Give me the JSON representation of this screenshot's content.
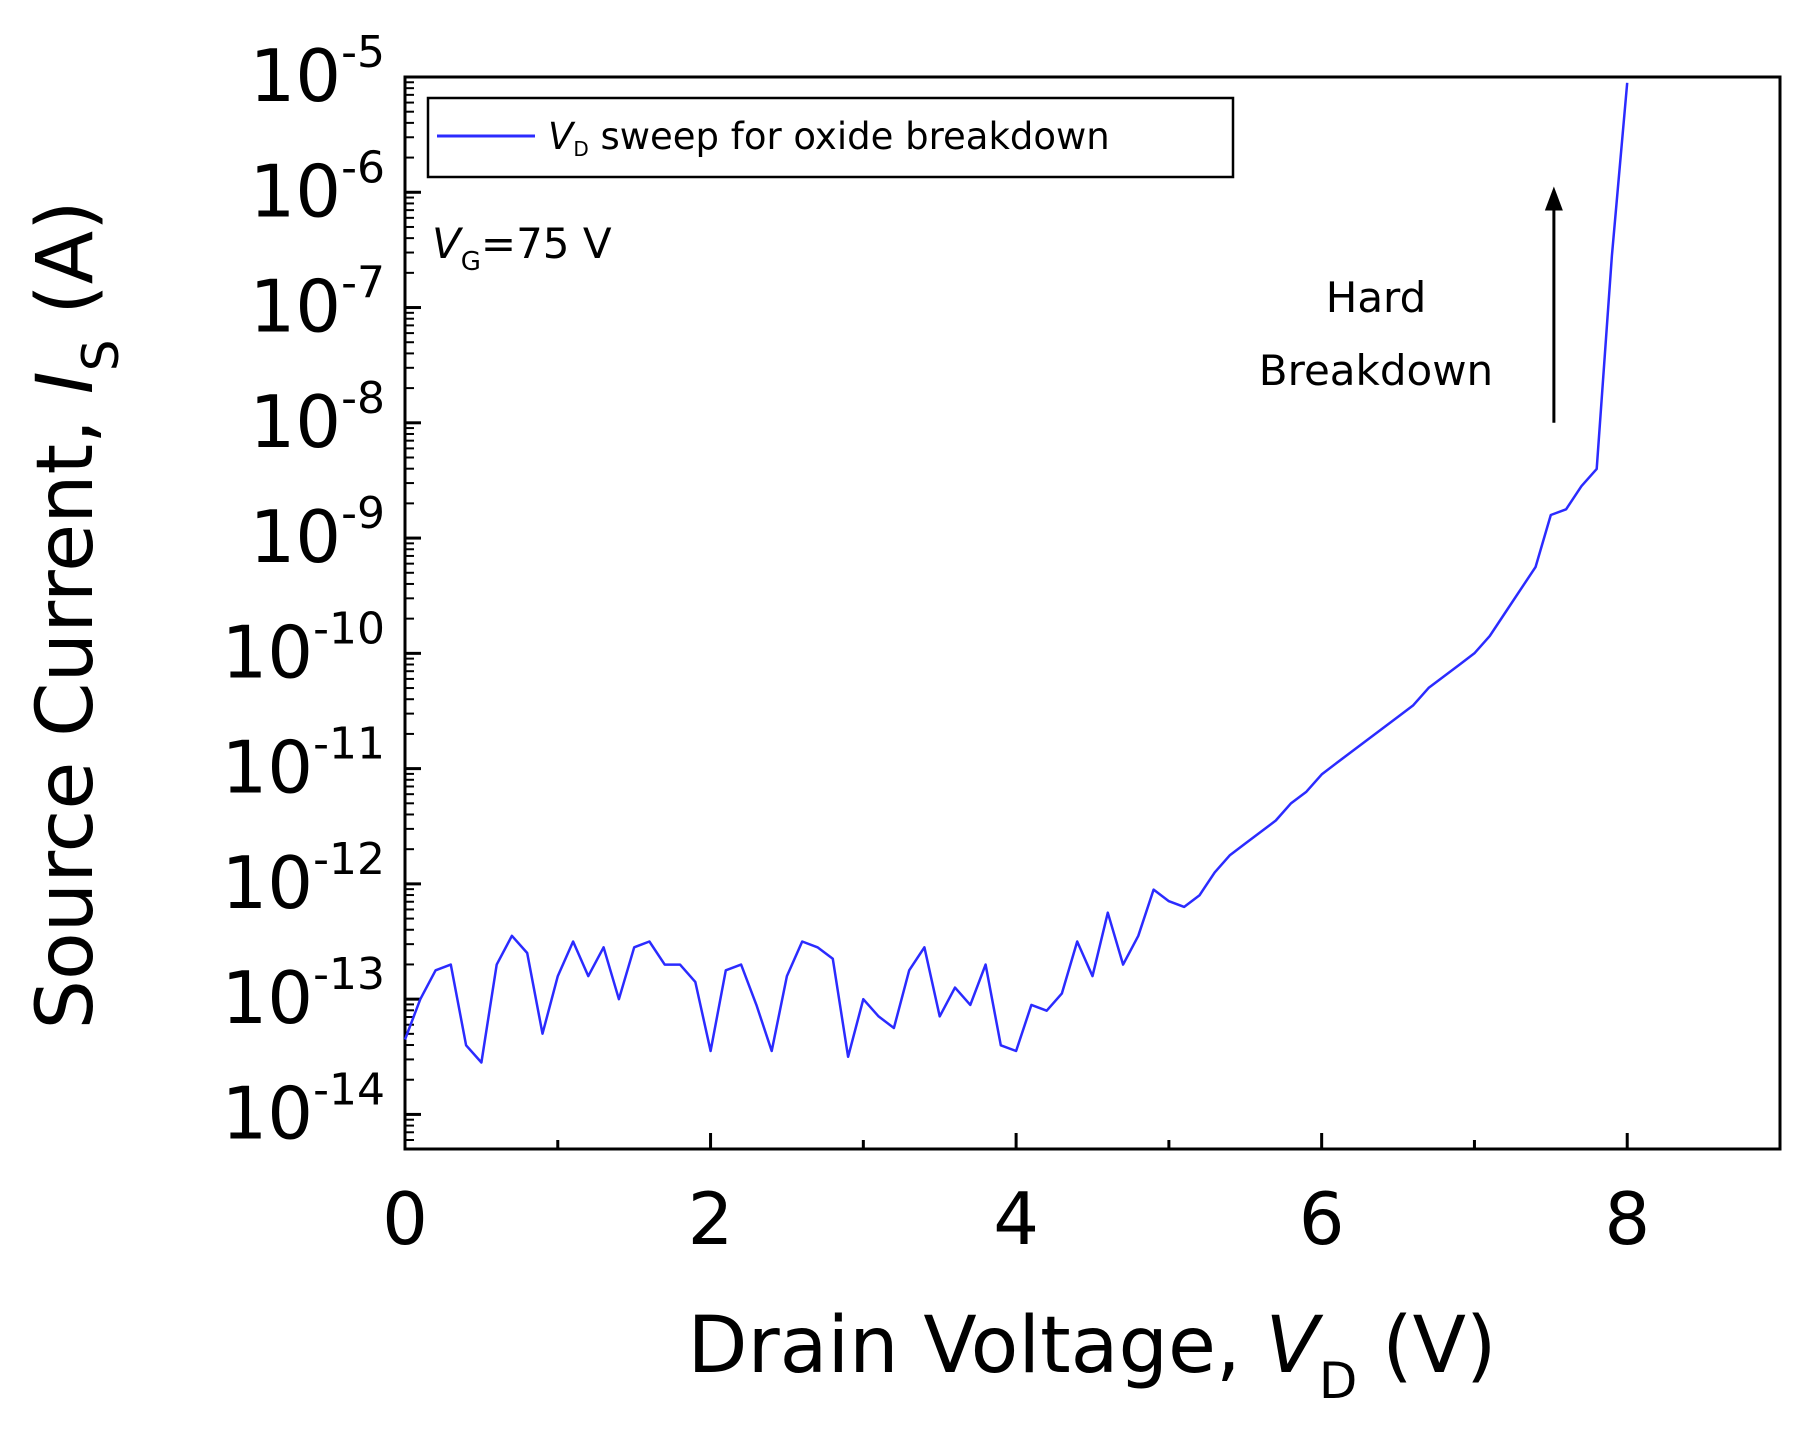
{
  "chart_data": {
    "type": "line",
    "xlabel": {
      "prefix": "Drain Voltage, ",
      "var": "V",
      "sub": "D",
      "suffix": " (V)"
    },
    "ylabel": {
      "prefix": "Source Current, ",
      "var": "I",
      "sub": "S",
      "suffix": " (A)"
    },
    "xlim": [
      0,
      9
    ],
    "ylim_exp": [
      -14.3,
      -5
    ],
    "x_ticks": [
      0,
      2,
      4,
      6,
      8
    ],
    "y_ticks": [
      {
        "base": "10",
        "exp": "-5",
        "value": -5
      },
      {
        "base": "10",
        "exp": "-6",
        "value": -6
      },
      {
        "base": "10",
        "exp": "-7",
        "value": -7
      },
      {
        "base": "10",
        "exp": "-8",
        "value": -8
      },
      {
        "base": "10",
        "exp": "-9",
        "value": -9
      },
      {
        "base": "10",
        "exp": "-10",
        "value": -10
      },
      {
        "base": "10",
        "exp": "-11",
        "value": -11
      },
      {
        "base": "10",
        "exp": "-12",
        "value": -12
      },
      {
        "base": "10",
        "exp": "-13",
        "value": -13
      },
      {
        "base": "10",
        "exp": "-14",
        "value": -14
      }
    ],
    "legend": {
      "var": "V",
      "sub": "D",
      "text": " sweep for oxide breakdown",
      "location": "top-left"
    },
    "condition": {
      "var": "V",
      "sub": "G",
      "text": "=75 V"
    },
    "annotation": {
      "lines": [
        "Hard",
        "Breakdown"
      ],
      "arrow_x": 7.52,
      "arrow_from": -8.0,
      "arrow_to": -5.95
    },
    "series": [
      {
        "name": "V_D sweep for oxide breakdown",
        "color": "#2b2bff",
        "x": [
          0,
          0.1,
          0.2,
          0.3,
          0.4,
          0.5,
          0.6,
          0.7,
          0.8,
          0.9,
          1.0,
          1.1,
          1.2,
          1.3,
          1.4,
          1.5,
          1.6,
          1.7,
          1.8,
          1.9,
          2.0,
          2.1,
          2.2,
          2.3,
          2.4,
          2.5,
          2.6,
          2.7,
          2.8,
          2.9,
          3.0,
          3.1,
          3.2,
          3.3,
          3.4,
          3.5,
          3.6,
          3.7,
          3.8,
          3.9,
          4.0,
          4.1,
          4.2,
          4.3,
          4.4,
          4.5,
          4.6,
          4.7,
          4.8,
          4.9,
          5.0,
          5.1,
          5.2,
          5.3,
          5.4,
          5.5,
          5.6,
          5.7,
          5.8,
          5.9,
          6.0,
          6.1,
          6.2,
          6.3,
          6.4,
          6.5,
          6.6,
          6.7,
          6.8,
          6.9,
          7.0,
          7.1,
          7.2,
          7.3,
          7.4,
          7.5,
          7.6,
          7.7,
          7.8,
          7.9,
          8.0
        ],
        "log10_y": [
          -13.35,
          -13.0,
          -12.75,
          -12.7,
          -13.4,
          -13.55,
          -12.7,
          -12.45,
          -12.6,
          -13.3,
          -12.8,
          -12.5,
          -12.8,
          -12.55,
          -13.0,
          -12.55,
          -12.5,
          -12.7,
          -12.7,
          -12.85,
          -13.45,
          -12.75,
          -12.7,
          -13.05,
          -13.45,
          -12.8,
          -12.5,
          -12.55,
          -12.65,
          -13.5,
          -13.0,
          -13.15,
          -13.25,
          -12.75,
          -12.55,
          -13.15,
          -12.9,
          -13.05,
          -12.7,
          -13.4,
          -13.45,
          -13.05,
          -13.1,
          -12.95,
          -12.5,
          -12.8,
          -12.25,
          -12.7,
          -12.45,
          -12.05,
          -12.15,
          -12.2,
          -12.1,
          -11.9,
          -11.75,
          -11.65,
          -11.55,
          -11.45,
          -11.3,
          -11.2,
          -11.05,
          -10.95,
          -10.85,
          -10.75,
          -10.65,
          -10.55,
          -10.45,
          -10.3,
          -10.2,
          -10.1,
          -10.0,
          -9.85,
          -9.65,
          -9.45,
          -9.25,
          -8.8,
          -8.75,
          -8.55,
          -8.4,
          -6.55,
          -5.05
        ]
      }
    ]
  }
}
